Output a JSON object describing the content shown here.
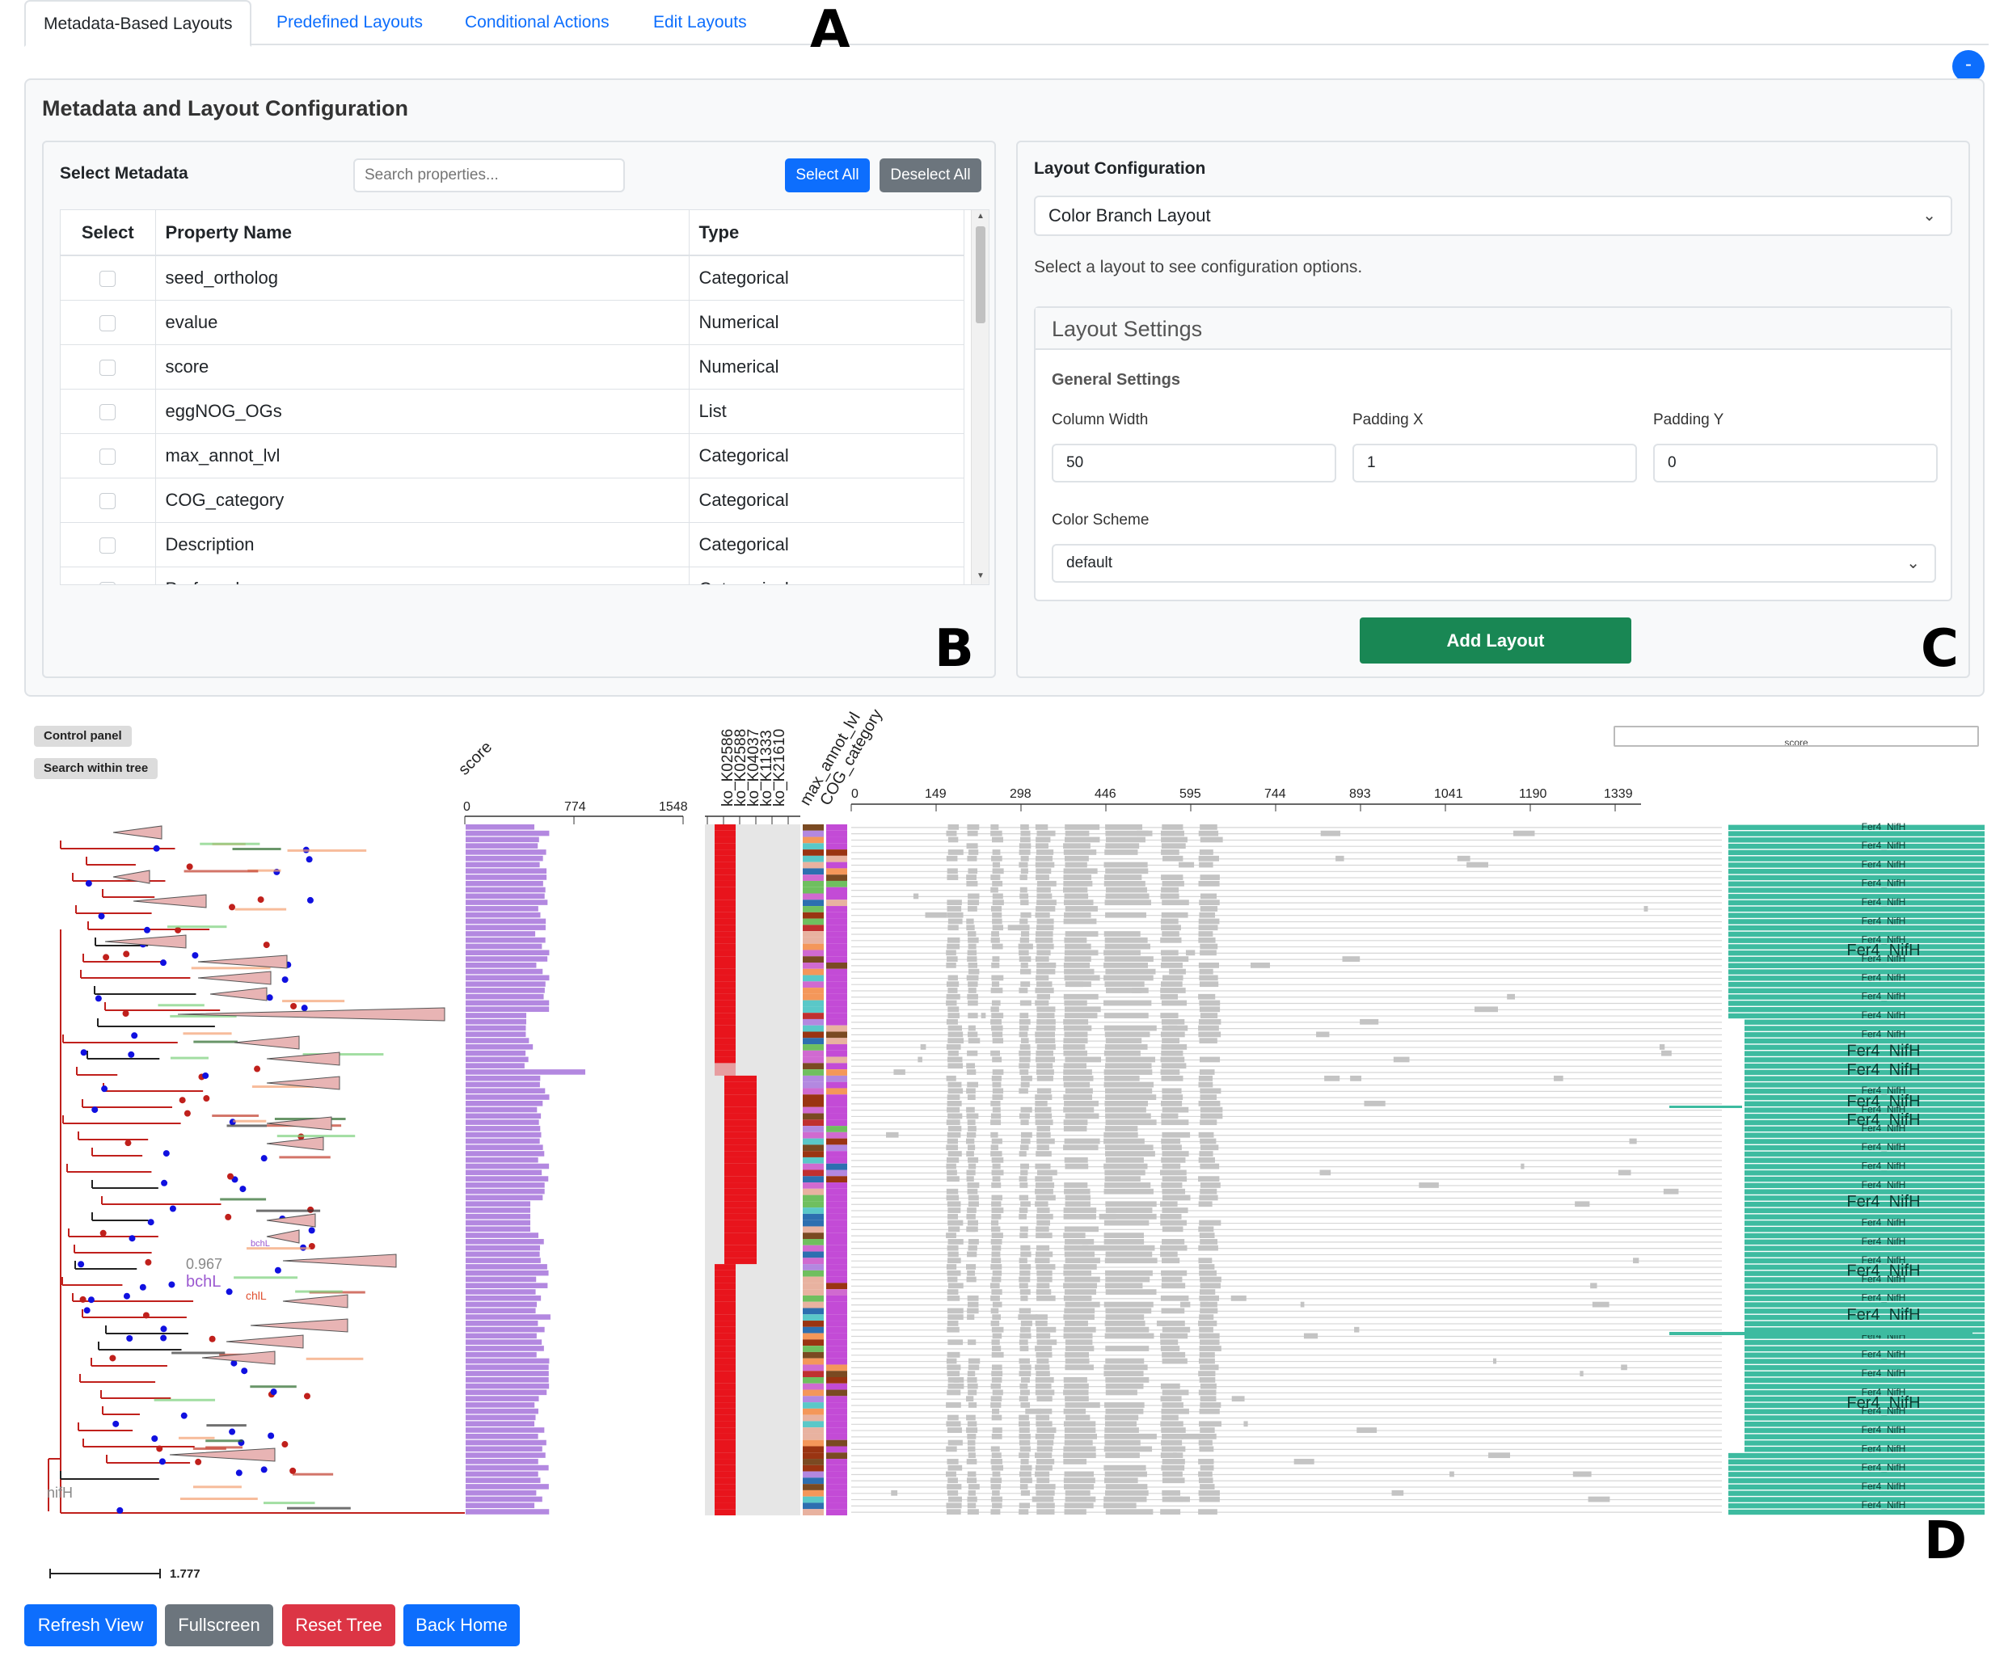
{
  "tabs": [
    {
      "label": "Metadata-Based Layouts",
      "active": true
    },
    {
      "label": "Predefined Layouts",
      "active": false
    },
    {
      "label": "Conditional Actions",
      "active": false
    },
    {
      "label": "Edit Layouts",
      "active": false
    }
  ],
  "panel_letters": {
    "a": "A",
    "b": "B",
    "c": "C",
    "d": "D"
  },
  "toggle_icon": "minus-icon",
  "toggle_glyph": "-",
  "config": {
    "title": "Metadata and Layout Configuration",
    "metadata": {
      "title": "Select Metadata",
      "search_placeholder": "Search properties...",
      "select_all": "Select All",
      "deselect_all": "Deselect All",
      "columns": [
        "Select",
        "Property Name",
        "Type"
      ],
      "rows": [
        {
          "name": "seed_ortholog",
          "type": "Categorical"
        },
        {
          "name": "evalue",
          "type": "Numerical"
        },
        {
          "name": "score",
          "type": "Numerical"
        },
        {
          "name": "eggNOG_OGs",
          "type": "List"
        },
        {
          "name": "max_annot_lvl",
          "type": "Categorical"
        },
        {
          "name": "COG_category",
          "type": "Categorical"
        },
        {
          "name": "Description",
          "type": "Categorical"
        },
        {
          "name": "Preferred_name",
          "type": "Categorical"
        }
      ]
    },
    "layout": {
      "title": "Layout Configuration",
      "selected_layout": "Color Branch Layout",
      "hint": "Select a layout to see configuration options.",
      "settings_title": "Layout Settings",
      "general_title": "General Settings",
      "column_width_label": "Column Width",
      "column_width": "50",
      "padding_x_label": "Padding X",
      "padding_x": "1",
      "padding_y_label": "Padding Y",
      "padding_y": "0",
      "color_scheme_label": "Color Scheme",
      "color_scheme": "default",
      "add_button": "Add Layout"
    }
  },
  "viewer": {
    "control_panel": "Control panel",
    "search_tree": "Search within tree",
    "top_search_value": "score",
    "score_header": "score",
    "score_ticks": [
      "0",
      "774",
      "1548"
    ],
    "ko_headers": [
      "ko_K02586",
      "ko_K02588",
      "ko_K04037",
      "ko_K11333",
      "ko_K21610"
    ],
    "max_annot_header": "max_annot_lvl",
    "cog_header": "COG_category",
    "alignment_ticks": [
      "0",
      "149",
      "298",
      "446",
      "595",
      "744",
      "893",
      "1041",
      "1190",
      "1339"
    ],
    "scale_label": "1.777",
    "tree_labels": {
      "support": "0.967",
      "bchl_big": "bchL",
      "chil": "chlL",
      "nifh": "nifH",
      "bchl_small": "bchL"
    },
    "domain_label": "Fer4_NifH",
    "colors": {
      "score_bar": "#b388e0",
      "ko_red": "#e8141c",
      "ko_bg": "#e6e6e6",
      "domain": "#3dbba0",
      "tree_red": "#c0201c",
      "node_blue": "#1010e0"
    }
  },
  "bottom_buttons": {
    "refresh": "Refresh View",
    "fullscreen": "Fullscreen",
    "reset": "Reset Tree",
    "back": "Back Home"
  }
}
